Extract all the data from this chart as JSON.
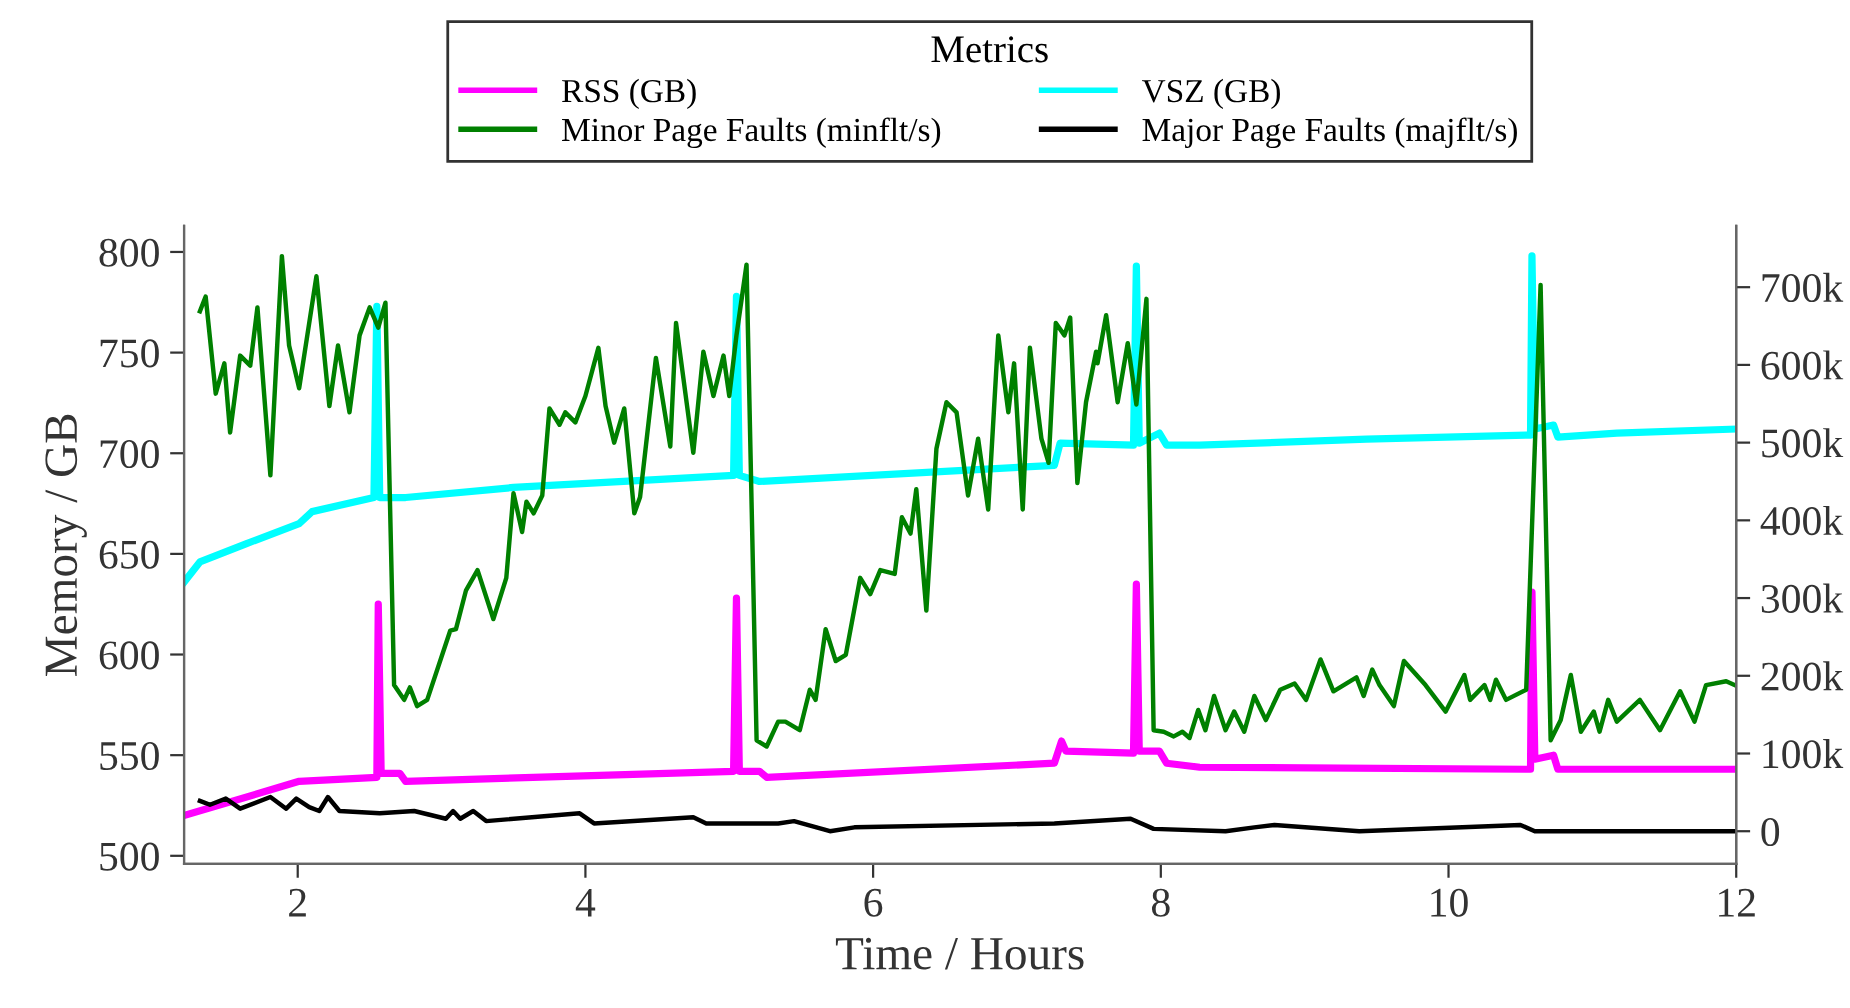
{
  "chart_data": {
    "type": "line",
    "xlabel": "Time / Hours",
    "ylabel": "Memory / GB",
    "legend_title": "Metrics",
    "legend": "top",
    "xlim": [
      1.21,
      12.0
    ],
    "xticks": [
      2,
      4,
      6,
      8,
      10,
      12
    ],
    "ylim": [
      496,
      813
    ],
    "yticks": [
      500,
      550,
      600,
      650,
      700,
      750,
      800
    ],
    "y2lim": [
      -42000,
      779000
    ],
    "y2ticks": [
      0,
      {
        "value": 100000,
        "label": "100k"
      },
      {
        "value": 200000,
        "label": "200k"
      },
      {
        "value": 300000,
        "label": "300k"
      },
      {
        "value": 400000,
        "label": "400k"
      },
      {
        "value": 500000,
        "label": "500k"
      },
      {
        "value": 600000,
        "label": "600k"
      },
      {
        "value": 700000,
        "label": "700k"
      }
    ],
    "grid": false,
    "marker": "none",
    "line_style": "solid",
    "series": [
      {
        "name": "RSS (GB)",
        "color": "#ff00ff",
        "x": [
          1.21,
          2.01,
          2.55,
          2.56,
          2.58,
          2.71,
          2.75,
          5.03,
          5.05,
          5.07,
          5.21,
          5.26,
          7.26,
          7.31,
          7.34,
          7.81,
          7.83,
          7.85,
          7.99,
          8.04,
          8.27,
          10.54,
          10.57,
          10.58,
          10.6,
          10.73,
          10.76,
          11.99
        ],
        "values": [
          520,
          537,
          539,
          625,
          541,
          541,
          537,
          542,
          628,
          542,
          542,
          539,
          546,
          557,
          552,
          551,
          635,
          552,
          552,
          546,
          544,
          543,
          543,
          631,
          548,
          550,
          543,
          543
        ]
      },
      {
        "name": "VSZ (GB)",
        "color": "#00ffff",
        "x": [
          1.21,
          1.32,
          1.64,
          2.01,
          2.1,
          2.53,
          2.55,
          2.57,
          2.75,
          3.5,
          5.03,
          5.05,
          5.07,
          5.21,
          7.26,
          7.3,
          7.81,
          7.83,
          7.85,
          7.99,
          8.04,
          8.27,
          9.43,
          10.54,
          10.57,
          10.58,
          10.6,
          10.73,
          10.76,
          11.17,
          11.99
        ],
        "values": [
          636,
          646,
          655,
          665,
          671,
          678,
          773,
          678,
          678,
          683,
          689,
          778,
          689,
          686,
          694,
          705,
          704,
          793,
          705,
          710,
          704,
          704,
          707,
          709,
          709,
          798,
          712,
          714,
          708,
          710,
          712
        ]
      },
      {
        "name": "Minor Page Faults (minflt/s)",
        "color": "#008000",
        "axis": "y2",
        "x": [
          1.32,
          1.36,
          1.43,
          1.49,
          1.53,
          1.6,
          1.67,
          1.72,
          1.81,
          1.89,
          1.94,
          2.01,
          2.13,
          2.22,
          2.28,
          2.36,
          2.43,
          2.5,
          2.56,
          2.61,
          2.67,
          2.74,
          2.78,
          2.83,
          2.9,
          3.06,
          3.1,
          3.17,
          3.25,
          3.36,
          3.45,
          3.5,
          3.56,
          3.59,
          3.64,
          3.7,
          3.75,
          3.82,
          3.86,
          3.93,
          4.0,
          4.09,
          4.14,
          4.2,
          4.27,
          4.34,
          4.38,
          4.49,
          4.59,
          4.63,
          4.75,
          4.82,
          4.89,
          4.96,
          5.0,
          5.05,
          5.12,
          5.19,
          5.26,
          5.34,
          5.39,
          5.49,
          5.56,
          5.6,
          5.67,
          5.74,
          5.81,
          5.91,
          5.98,
          6.05,
          6.15,
          6.2,
          6.26,
          6.3,
          6.37,
          6.44,
          6.51,
          6.58,
          6.66,
          6.73,
          6.8,
          6.87,
          6.94,
          6.98,
          7.04,
          7.09,
          7.17,
          7.22,
          7.27,
          7.33,
          7.37,
          7.42,
          7.48,
          7.55,
          7.56,
          7.62,
          7.7,
          7.77,
          7.83,
          7.9,
          7.95,
          8.02,
          8.09,
          8.15,
          8.2,
          8.26,
          8.31,
          8.37,
          8.45,
          8.51,
          8.58,
          8.65,
          8.73,
          8.83,
          8.93,
          9.01,
          9.11,
          9.2,
          9.36,
          9.41,
          9.47,
          9.52,
          9.62,
          9.69,
          9.84,
          9.98,
          10.11,
          10.15,
          10.25,
          10.29,
          10.33,
          10.4,
          10.54,
          10.64,
          10.71,
          10.78,
          10.85,
          10.92,
          11.01,
          11.05,
          11.11,
          11.17,
          11.33,
          11.47,
          11.61,
          11.71,
          11.79,
          11.93,
          11.99
        ],
        "values": [
          669000,
          688000,
          563000,
          602000,
          513000,
          612000,
          599000,
          674000,
          458000,
          740000,
          625000,
          570000,
          714000,
          547000,
          625000,
          539000,
          638000,
          674000,
          648000,
          680000,
          188000,
          169000,
          185000,
          161000,
          169000,
          258000,
          260000,
          310000,
          336000,
          273000,
          326000,
          435000,
          385000,
          424000,
          409000,
          432000,
          544000,
          523000,
          539000,
          526000,
          560000,
          622000,
          547000,
          500000,
          544000,
          409000,
          430000,
          609000,
          495000,
          654000,
          487000,
          617000,
          560000,
          612000,
          560000,
          638000,
          729000,
          117000,
          109000,
          141000,
          141000,
          130000,
          182000,
          169000,
          260000,
          219000,
          227000,
          326000,
          305000,
          336000,
          331000,
          404000,
          383000,
          440000,
          284000,
          492000,
          552000,
          539000,
          432000,
          505000,
          414000,
          638000,
          539000,
          602000,
          414000,
          622000,
          505000,
          474000,
          654000,
          638000,
          661000,
          448000,
          552000,
          617000,
          602000,
          664000,
          552000,
          628000,
          549000,
          685000,
          130000,
          128000,
          122000,
          128000,
          120000,
          156000,
          130000,
          174000,
          130000,
          154000,
          128000,
          174000,
          143000,
          182000,
          190000,
          169000,
          221000,
          180000,
          198000,
          174000,
          208000,
          188000,
          161000,
          219000,
          188000,
          154000,
          201000,
          169000,
          188000,
          169000,
          195000,
          169000,
          182000,
          703000,
          117000,
          143000,
          201000,
          128000,
          154000,
          128000,
          169000,
          141000,
          169000,
          130000,
          180000,
          141000,
          188000,
          193000,
          188000
        ]
      },
      {
        "name": "Major Page Faults (majflt/s)",
        "color": "#000000",
        "axis": "y2",
        "x": [
          1.32,
          1.39,
          1.5,
          1.6,
          1.81,
          1.92,
          1.99,
          2.08,
          2.15,
          2.21,
          2.29,
          2.57,
          2.81,
          3.03,
          3.08,
          3.13,
          3.22,
          3.31,
          3.96,
          4.06,
          4.75,
          4.84,
          5.34,
          5.45,
          5.7,
          5.87,
          7.26,
          7.79,
          7.95,
          8.45,
          8.65,
          8.79,
          9.38,
          10.5,
          10.6,
          11.99
        ],
        "values": [
          39000,
          34000,
          42000,
          29000,
          44000,
          29000,
          42000,
          31000,
          26000,
          44000,
          26000,
          23000,
          26000,
          16000,
          26000,
          16000,
          26000,
          13000,
          23000,
          10000,
          18000,
          10000,
          10000,
          13000,
          0,
          5000,
          10000,
          16000,
          3000,
          0,
          5000,
          8000,
          0,
          8000,
          0,
          0
        ]
      }
    ]
  }
}
